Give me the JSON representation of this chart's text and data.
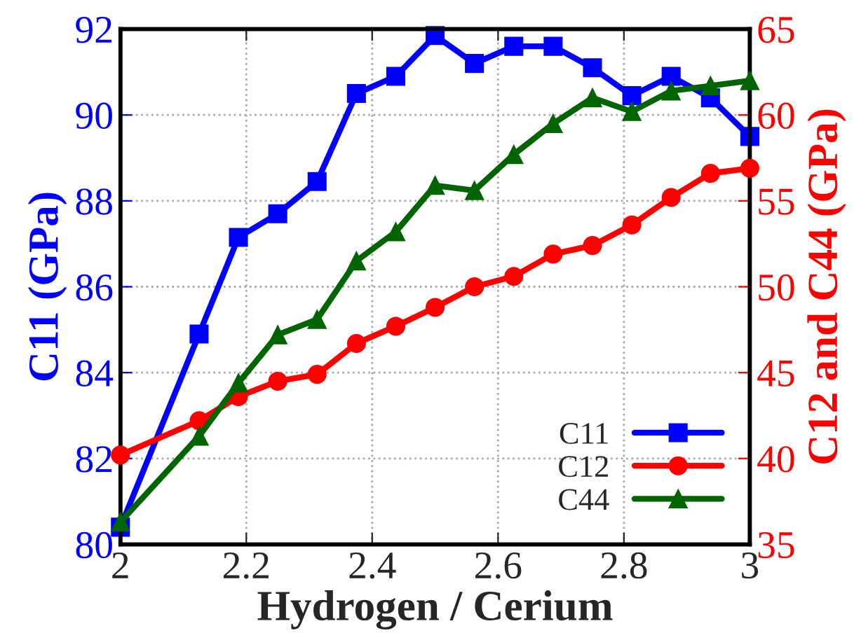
{
  "chart_data": {
    "type": "line",
    "xlabel": "Hydrogen / Cerium",
    "ylabel": "C11 (GPa)",
    "y2label": "C12 and C44 (GPa)",
    "x": [
      2,
      2.125,
      2.1875,
      2.25,
      2.3125,
      2.375,
      2.4375,
      2.5,
      2.5625,
      2.625,
      2.6875,
      2.75,
      2.8125,
      2.875,
      2.9375,
      3
    ],
    "series": [
      {
        "name": "C11",
        "color": "#0000ff",
        "marker": "square",
        "values": [
          80.4,
          84.9,
          87.15,
          87.7,
          88.45,
          90.5,
          90.9,
          91.85,
          91.2,
          91.6,
          91.6,
          91.1,
          90.45,
          90.9,
          90.4,
          89.5
        ]
      },
      {
        "name": "C12",
        "color": "#ff0000",
        "marker": "circle",
        "axis": "y2",
        "values": [
          40.2,
          42.2,
          43.6,
          44.5,
          44.9,
          46.7,
          47.7,
          48.8,
          50.0,
          50.6,
          51.9,
          52.4,
          53.6,
          55.2,
          56.6,
          56.9
        ]
      },
      {
        "name": "C44",
        "color": "#006400",
        "marker": "triangle",
        "axis": "y2",
        "values": [
          36.3,
          41.3,
          44.4,
          47.2,
          48.1,
          51.5,
          53.2,
          55.9,
          55.6,
          57.7,
          59.5,
          61.0,
          60.2,
          61.4,
          61.7,
          62.0
        ]
      }
    ],
    "xlim": [
      2,
      3
    ],
    "xticks": [
      2,
      2.2,
      2.4,
      2.6,
      2.8,
      3
    ],
    "ylim": [
      80,
      92
    ],
    "yticks": [
      80,
      82,
      84,
      86,
      88,
      90,
      92
    ],
    "y2lim": [
      35,
      65
    ],
    "y2ticks": [
      35,
      40,
      45,
      50,
      55,
      60,
      65
    ],
    "grid": true,
    "legend": "bottom right",
    "line_style": "solid"
  }
}
